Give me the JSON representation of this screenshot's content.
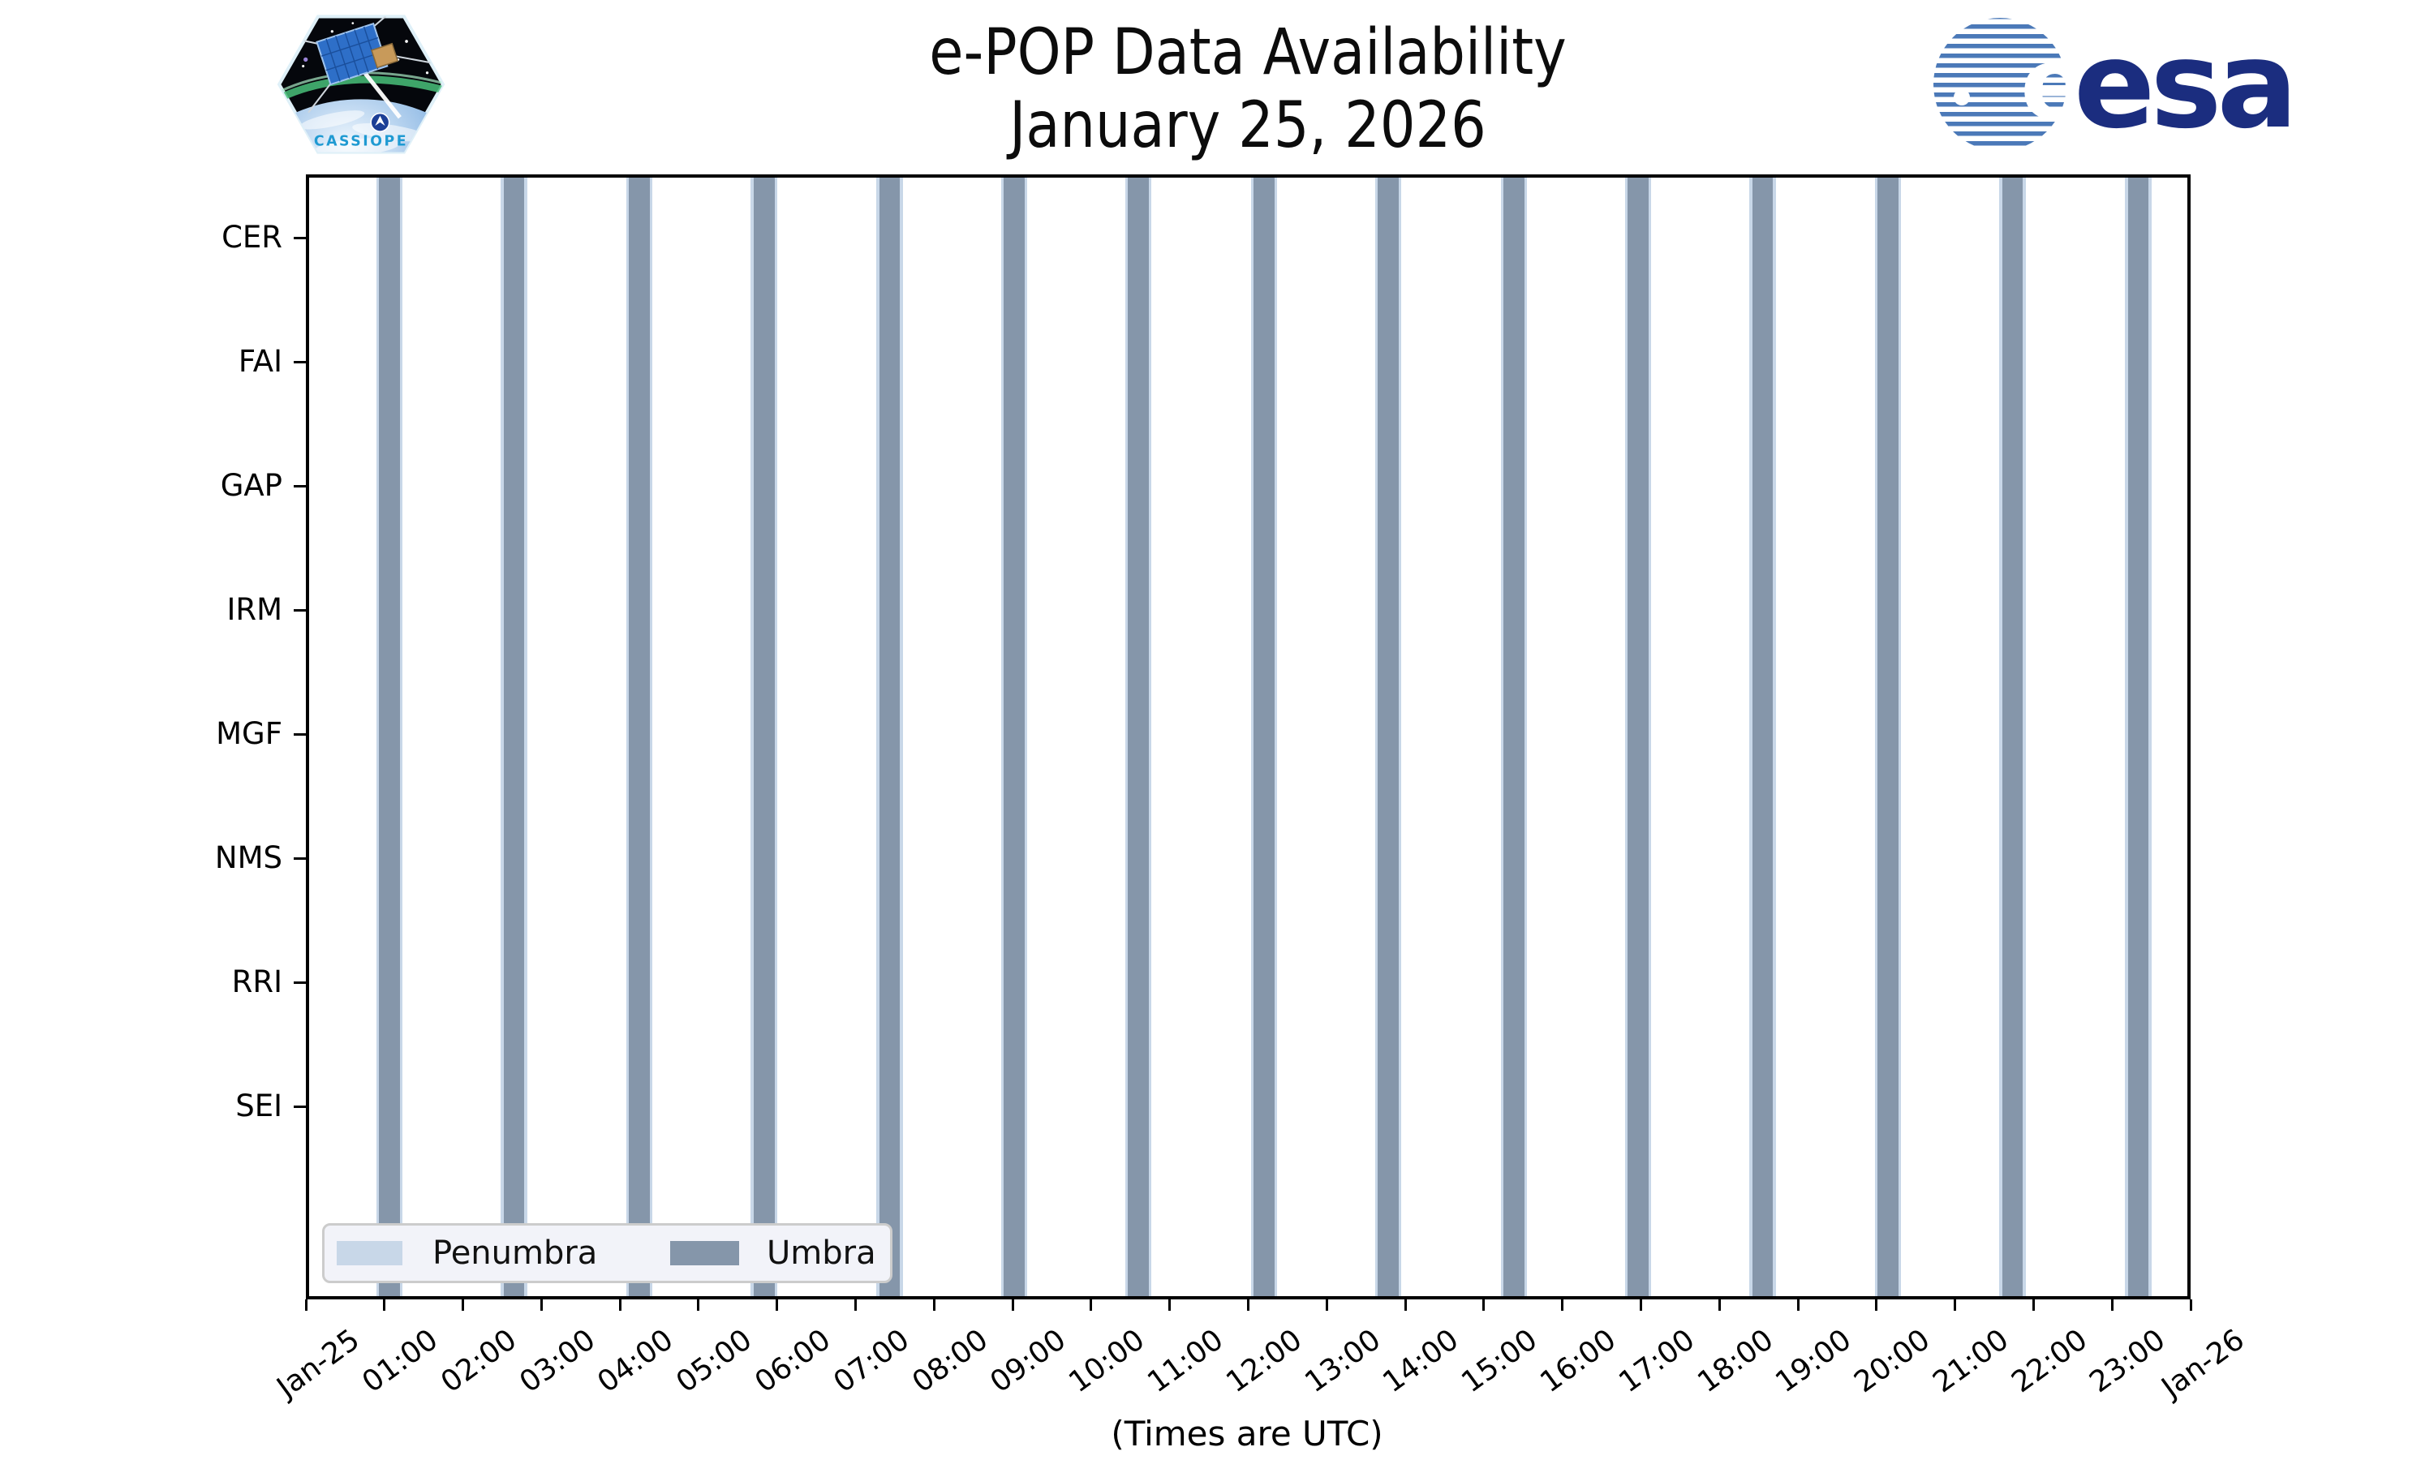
{
  "header": {
    "title_line1": "e-POP Data Availability",
    "title_line2": "January 25, 2026",
    "cassiope_patch_text": "CASSIOPE",
    "esa_logo_text": "esa"
  },
  "chart_data": {
    "type": "bar",
    "subtype": "time-band-availability-timeline",
    "title": "e-POP Data Availability",
    "subtitle": "January 25, 2026",
    "xlabel": "(Times are UTC)",
    "grid": false,
    "legend_position": "lower-left",
    "categories": [
      "CER",
      "FAI",
      "GAP",
      "IRM",
      "MGF",
      "NMS",
      "RRI",
      "SEI"
    ],
    "instrument_availability_intervals": {
      "CER": [],
      "FAI": [],
      "GAP": [],
      "IRM": [],
      "MGF": [],
      "NMS": [],
      "RRI": [],
      "SEI": []
    },
    "x_axis_range": [
      "Jan-25 00:00",
      "Jan-26 00:00"
    ],
    "x_tick_labels": [
      "Jan-25",
      "01:00",
      "02:00",
      "03:00",
      "04:00",
      "05:00",
      "06:00",
      "07:00",
      "08:00",
      "09:00",
      "10:00",
      "11:00",
      "12:00",
      "13:00",
      "14:00",
      "15:00",
      "16:00",
      "17:00",
      "18:00",
      "19:00",
      "20:00",
      "21:00",
      "22:00",
      "23:00",
      "Jan-26"
    ],
    "umbra_intervals": [
      [
        "00:56",
        "01:12"
      ],
      [
        "02:31",
        "02:47"
      ],
      [
        "04:07",
        "04:23"
      ],
      [
        "05:42",
        "05:58"
      ],
      [
        "07:18",
        "07:34"
      ],
      [
        "08:53",
        "09:09"
      ],
      [
        "10:28",
        "10:44"
      ],
      [
        "12:04",
        "12:20"
      ],
      [
        "13:39",
        "13:55"
      ],
      [
        "15:15",
        "15:31"
      ],
      [
        "16:50",
        "17:06"
      ],
      [
        "18:25",
        "18:41"
      ],
      [
        "20:01",
        "20:17"
      ],
      [
        "21:36",
        "21:52"
      ],
      [
        "23:12",
        "23:28"
      ]
    ],
    "penumbra_margin_minutes": 2,
    "legend": [
      {
        "label": "Penumbra",
        "color": "#c8d7e8"
      },
      {
        "label": "Umbra",
        "color": "#8596aa"
      }
    ]
  },
  "colors": {
    "umbra": "#8596aa",
    "penumbra": "#c8d7e8",
    "axis": "#000000",
    "legend_bg": "#f2f3f9",
    "legend_border": "#cccccc",
    "esa_navy": "#1b2d7f",
    "esa_stripe_blue": "#4b79b8",
    "cassiope_text_blue": "#1f9ad2"
  }
}
